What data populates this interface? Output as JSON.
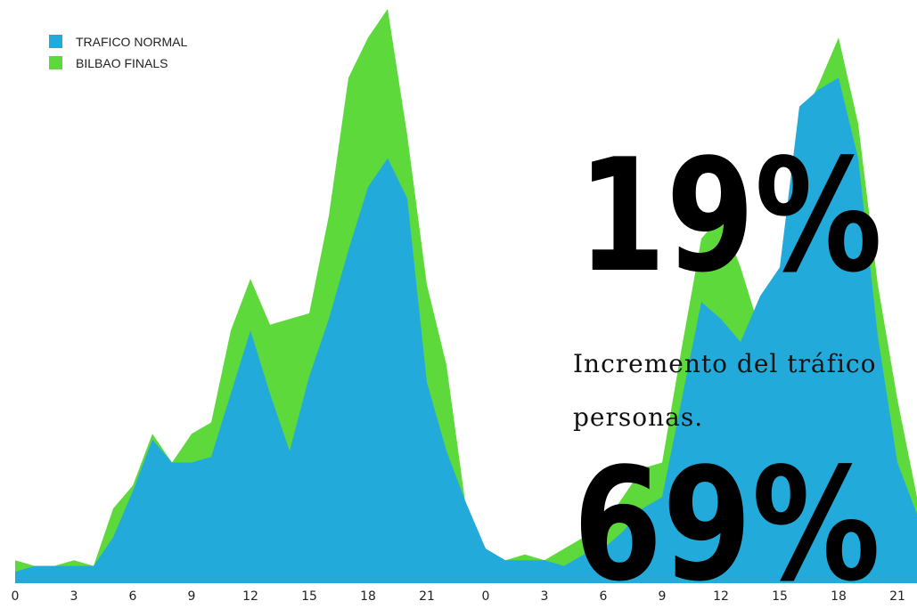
{
  "chart_data": {
    "type": "area",
    "categories": [
      0,
      null,
      null,
      3,
      null,
      null,
      6,
      null,
      null,
      9,
      null,
      null,
      12,
      null,
      null,
      15,
      null,
      null,
      18,
      null,
      null,
      21,
      null,
      null,
      0,
      null,
      null,
      3,
      null,
      null,
      6,
      null,
      null,
      9,
      null,
      null,
      12,
      null,
      null,
      15,
      null,
      null,
      18,
      null,
      null,
      21,
      null
    ],
    "series": [
      {
        "name": "BILBAO FINALS",
        "color": "#5ed93b",
        "values": [
          4,
          3,
          3,
          4,
          3,
          13,
          17,
          26,
          21,
          26,
          28,
          44,
          53,
          45,
          46,
          47,
          64,
          88,
          95,
          100,
          78,
          52,
          38,
          13,
          6,
          4,
          5,
          4,
          6,
          8,
          10,
          15,
          20,
          21,
          41,
          60,
          64,
          55,
          44,
          50,
          80,
          87,
          95,
          80,
          52,
          32,
          15
        ]
      },
      {
        "name": "TRAFICO NORMAL",
        "color": "#22aadb",
        "values": [
          2,
          3,
          3,
          3,
          3,
          8,
          16,
          25,
          21,
          21,
          22,
          33,
          44,
          33,
          23,
          36,
          46,
          58,
          69,
          74,
          67,
          35,
          23,
          14,
          6,
          4,
          4,
          4,
          3,
          5,
          6,
          9,
          13,
          15,
          32,
          49,
          46,
          42,
          50,
          55,
          83,
          86,
          88,
          74,
          43,
          21,
          12
        ]
      }
    ],
    "ylim": [
      0,
      100
    ],
    "annotations": [
      "19%",
      "Incremento del tráfico",
      "personas.",
      "69%"
    ]
  }
}
